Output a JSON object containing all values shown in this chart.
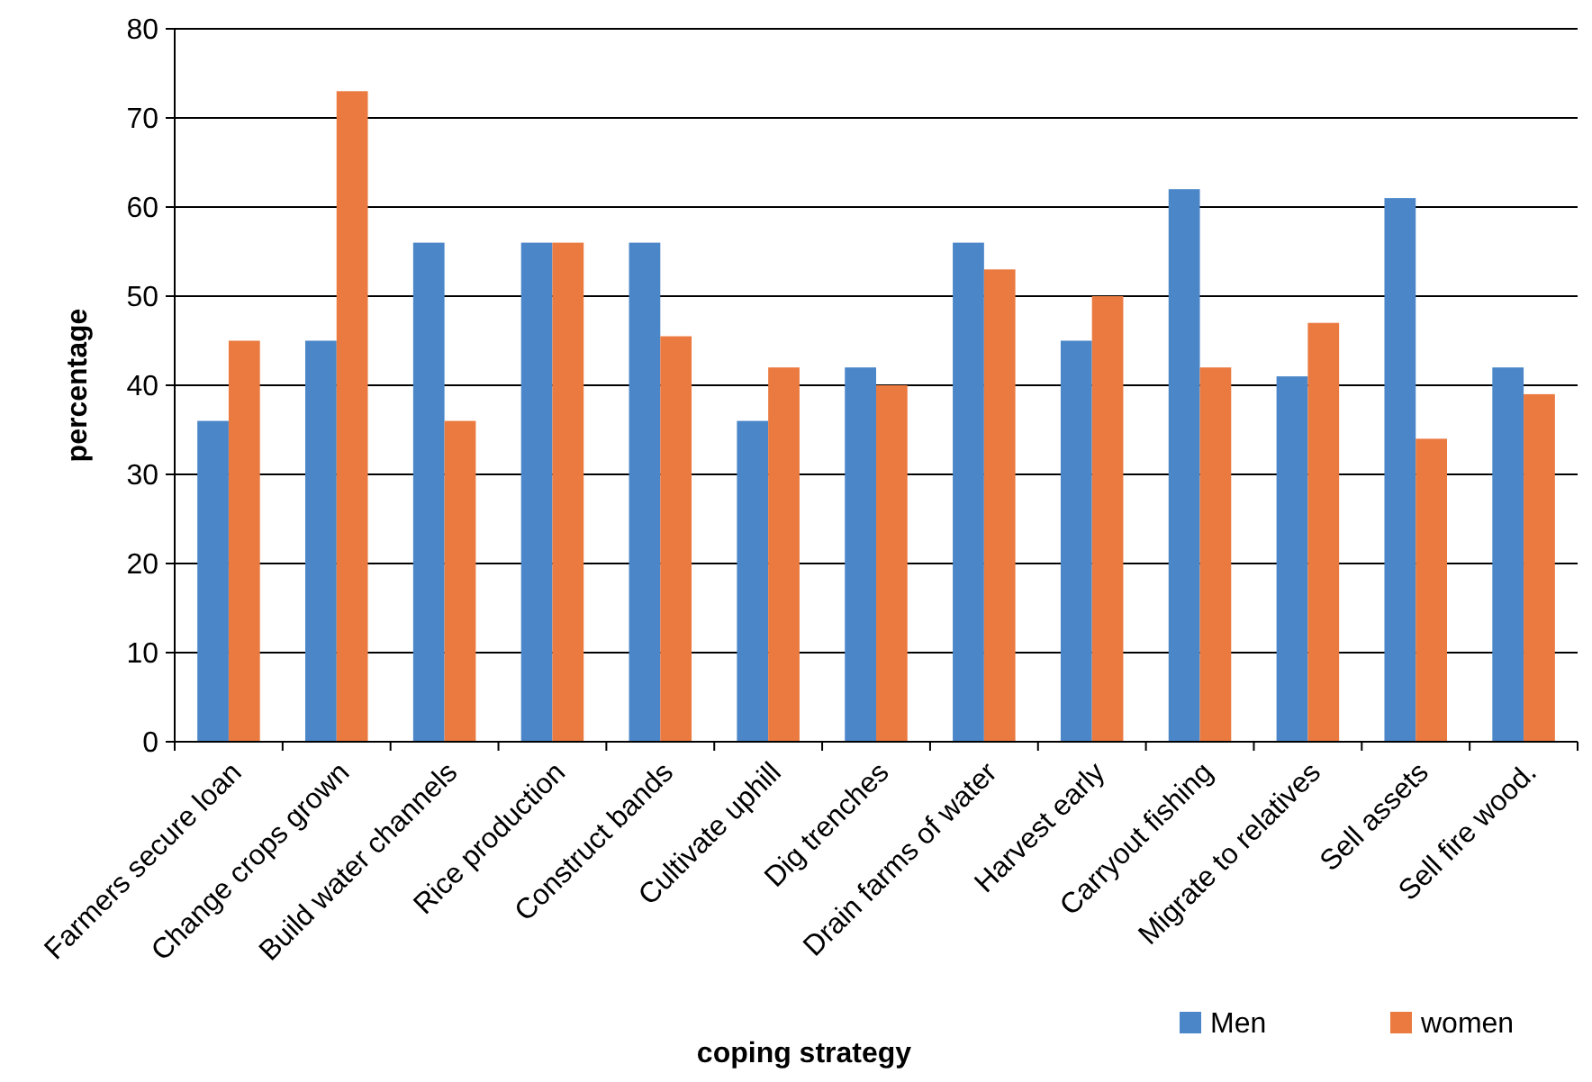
{
  "chart_data": {
    "type": "bar",
    "xlabel": "coping strategy",
    "ylabel": "percentage",
    "categories": [
      "Farmers secure loan",
      "Change crops grown",
      "Build water channels",
      "Rice production",
      "Construct bands",
      "Cultivate uphill",
      "Dig trenches",
      "Drain farms of water",
      "Harvest early",
      "Carryout fishing",
      "Migrate to relatives",
      "Sell assets",
      "Sell fire wood."
    ],
    "series": [
      {
        "name": "Men",
        "color": "#4a86c8",
        "values": [
          36,
          45,
          56,
          56,
          56,
          36,
          42,
          56,
          45,
          62,
          41,
          61,
          42
        ]
      },
      {
        "name": "women",
        "color": "#ea7a3f",
        "values": [
          45,
          73,
          36,
          56,
          45.5,
          42,
          40,
          53,
          50,
          42,
          47,
          34,
          39
        ]
      }
    ],
    "ylim": [
      0,
      80
    ],
    "yticks": [
      0,
      10,
      20,
      30,
      40,
      50,
      60,
      70,
      80
    ],
    "grid": "y",
    "legend": "bottom right"
  }
}
